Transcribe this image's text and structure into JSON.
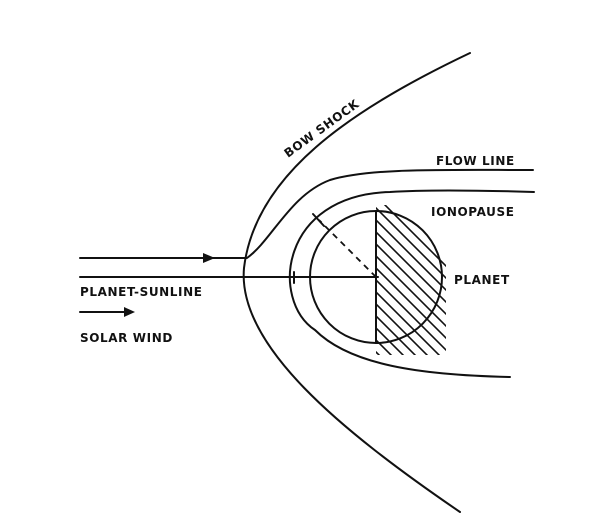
{
  "labels": {
    "bow_shock": "BOW SHOCK",
    "flow_line": "FLOW LINE",
    "ionopause": "IONOPAUSE",
    "planet": "PLANET",
    "planet_sunline": "PLANET-SUNLINE",
    "solar_wind": "SOLAR WIND"
  },
  "colors": {
    "ink": "#111111",
    "background": "#ffffff"
  }
}
